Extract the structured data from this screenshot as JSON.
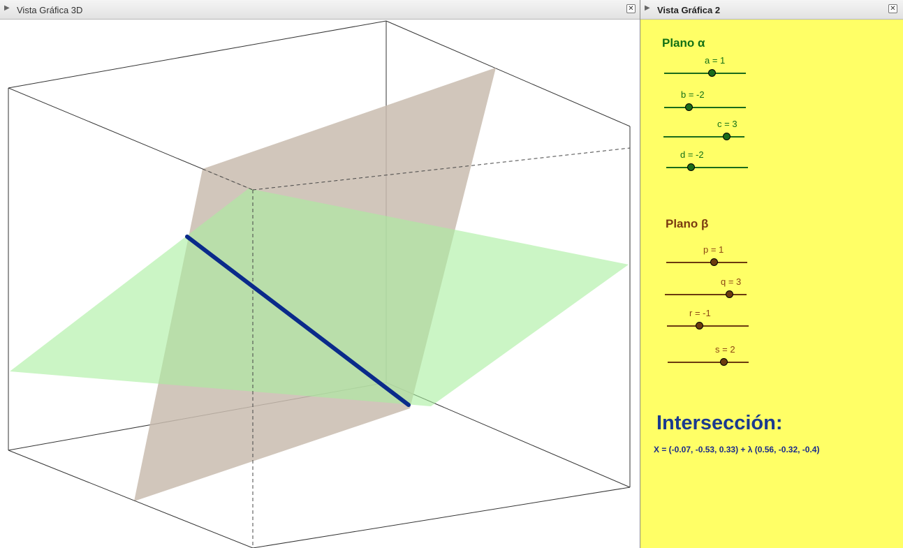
{
  "view3d": {
    "title": "Vista Gráfica 3D",
    "close_icon": "✕"
  },
  "view2": {
    "title": "Vista Gráfica 2",
    "close_icon": "✕",
    "plane_alpha": {
      "heading": "Plano α",
      "color": "#137015",
      "sliders": [
        {
          "label": "a = 1",
          "value": 1
        },
        {
          "label": "b = -2",
          "value": -2
        },
        {
          "label": "c = 3",
          "value": 3
        },
        {
          "label": "d = -2",
          "value": -2
        }
      ]
    },
    "plane_beta": {
      "heading": "Plano β",
      "color": "#7a3a10",
      "sliders": [
        {
          "label": "p = 1",
          "value": 1
        },
        {
          "label": "q = 3",
          "value": 3
        },
        {
          "label": "r = -1",
          "value": -1
        },
        {
          "label": "s = 2",
          "value": 2
        }
      ]
    },
    "intersection": {
      "title": "Intersección:",
      "equation": "X = (-0.07, -0.53, 0.33) + λ (0.56, -0.32, -0.4)"
    }
  },
  "colors": {
    "background_2d": "#ffff66",
    "plane_alpha_fill": "#b3f0ad",
    "plane_beta_fill": "#c9bcaf",
    "intersection_line": "#0a2a8a"
  }
}
